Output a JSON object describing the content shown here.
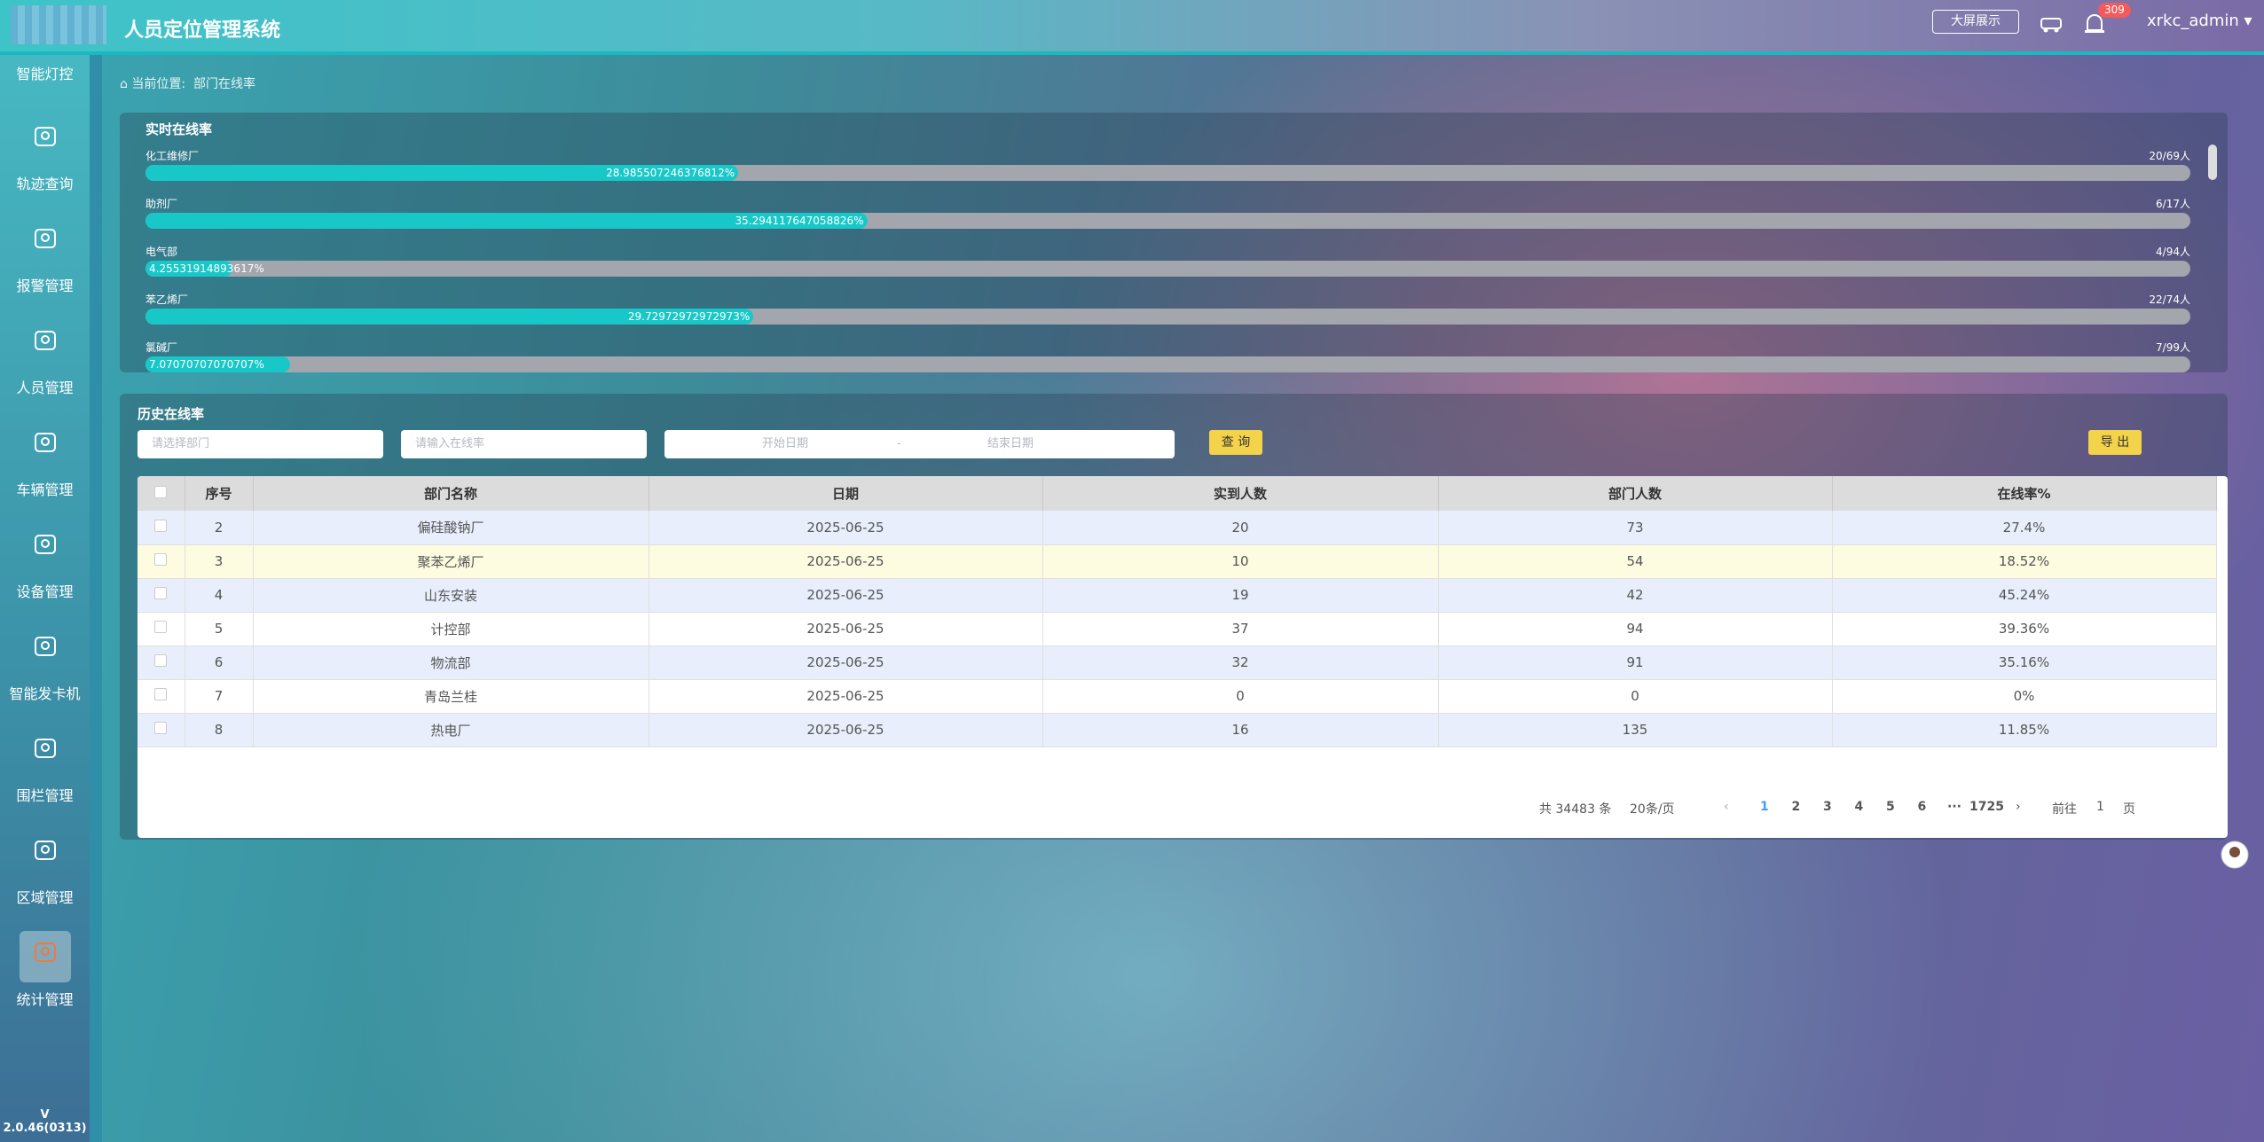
{
  "header": {
    "title": "人员定位管理系统",
    "big_screen": "大屏展示",
    "alarm_badge": "309",
    "user": "xrkc_admin"
  },
  "sidebar": {
    "items": [
      "智能灯控",
      "轨迹查询",
      "报警管理",
      "人员管理",
      "车辆管理",
      "设备管理",
      "智能发卡机",
      "围栏管理",
      "区域管理",
      "统计管理"
    ],
    "version": "V 2.0.46(0313)"
  },
  "breadcrumb": {
    "prefix": "当前位置:",
    "current": "部门在线率"
  },
  "realtime": {
    "title": "实时在线率",
    "rows": [
      {
        "name": "化工维修厂",
        "count": "20/69人",
        "rate": 28.985507246376812,
        "rate_label": "28.985507246376812%"
      },
      {
        "name": "助剂厂",
        "count": "6/17人",
        "rate": 35.294117647058826,
        "rate_label": "35.294117647058826%"
      },
      {
        "name": "电气部",
        "count": "4/94人",
        "rate": 4.25531914893617,
        "rate_label": "4.25531914893617%"
      },
      {
        "name": "苯乙烯厂",
        "count": "22/74人",
        "rate": 29.72972972972973,
        "rate_label": "29.72972972972973%"
      },
      {
        "name": "氯碱厂",
        "count": "7/99人",
        "rate": 7.07070707070707,
        "rate_label": "7.07070707070707%"
      }
    ]
  },
  "history": {
    "title": "历史在线率",
    "dept_placeholder": "请选择部门",
    "rate_placeholder": "请输入在线率",
    "start_placeholder": "开始日期",
    "range_sep": "-",
    "end_placeholder": "结束日期",
    "query": "查 询",
    "export": "导 出"
  },
  "table": {
    "headers": [
      "序号",
      "部门名称",
      "日期",
      "实到人数",
      "部门人数",
      "在线率%"
    ],
    "rows": [
      [
        "2",
        "偏硅酸钠厂",
        "2025-06-25",
        "20",
        "73",
        "27.4%"
      ],
      [
        "3",
        "聚苯乙烯厂",
        "2025-06-25",
        "10",
        "54",
        "18.52%"
      ],
      [
        "4",
        "山东安装",
        "2025-06-25",
        "19",
        "42",
        "45.24%"
      ],
      [
        "5",
        "计控部",
        "2025-06-25",
        "37",
        "94",
        "39.36%"
      ],
      [
        "6",
        "物流部",
        "2025-06-25",
        "32",
        "91",
        "35.16%"
      ],
      [
        "7",
        "青岛兰桂",
        "2025-06-25",
        "0",
        "0",
        "0%"
      ],
      [
        "8",
        "热电厂",
        "2025-06-25",
        "16",
        "135",
        "11.85%"
      ]
    ]
  },
  "pagination": {
    "total": "共 34483 条",
    "page_size": "20条/页",
    "pages": [
      "1",
      "2",
      "3",
      "4",
      "5",
      "6"
    ],
    "ellipsis": "···",
    "last": "1725",
    "goto": "前往",
    "goto_value": "1",
    "goto_suffix": "页"
  }
}
